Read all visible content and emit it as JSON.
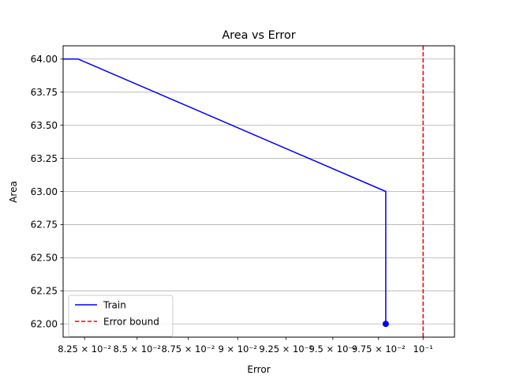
{
  "chart_data": {
    "type": "line",
    "title": "Area vs Error",
    "xlabel": "Error",
    "ylabel": "Area",
    "xscale": "log",
    "xlim": [
      0.0815,
      0.1018
    ],
    "ylim": [
      61.9,
      64.1
    ],
    "grid": {
      "y": true,
      "x": false
    },
    "x_ticks": [
      {
        "value": 0.0825,
        "label": "8.25 × 10⁻²"
      },
      {
        "value": 0.085,
        "label": "8.5 × 10⁻²"
      },
      {
        "value": 0.0875,
        "label": "8.75 × 10⁻²"
      },
      {
        "value": 0.09,
        "label": "9 × 10⁻²"
      },
      {
        "value": 0.0925,
        "label": "9.25 × 10⁻²"
      },
      {
        "value": 0.095,
        "label": "9.5 × 10⁻²"
      },
      {
        "value": 0.0975,
        "label": "9.75 × 10⁻²"
      },
      {
        "value": 0.1,
        "label": "10⁻¹"
      }
    ],
    "y_ticks": [
      {
        "value": 62.0,
        "label": "62.00"
      },
      {
        "value": 62.25,
        "label": "62.25"
      },
      {
        "value": 62.5,
        "label": "62.50"
      },
      {
        "value": 62.75,
        "label": "62.75"
      },
      {
        "value": 63.0,
        "label": "63.00"
      },
      {
        "value": 63.25,
        "label": "63.25"
      },
      {
        "value": 63.5,
        "label": "63.50"
      },
      {
        "value": 63.75,
        "label": "63.75"
      },
      {
        "value": 64.0,
        "label": "64.00"
      }
    ],
    "series": [
      {
        "name": "Train",
        "color": "#0000ff",
        "style": "solid",
        "x": [
          0.0815,
          0.0822,
          0.0979,
          0.0979
        ],
        "y": [
          64.0,
          64.0,
          63.0,
          62.0
        ],
        "end_marker": {
          "x": 0.0979,
          "y": 62.0
        }
      }
    ],
    "reference_lines": [
      {
        "name": "Error bound",
        "orientation": "vertical",
        "x": 0.1,
        "color": "#ff0000",
        "style": "dashed"
      }
    ],
    "legend": {
      "position": "lower-left",
      "entries": [
        {
          "label": "Train",
          "color": "#0000ff",
          "style": "solid"
        },
        {
          "label": "Error bound",
          "color": "#ff0000",
          "style": "dashed"
        }
      ]
    }
  }
}
